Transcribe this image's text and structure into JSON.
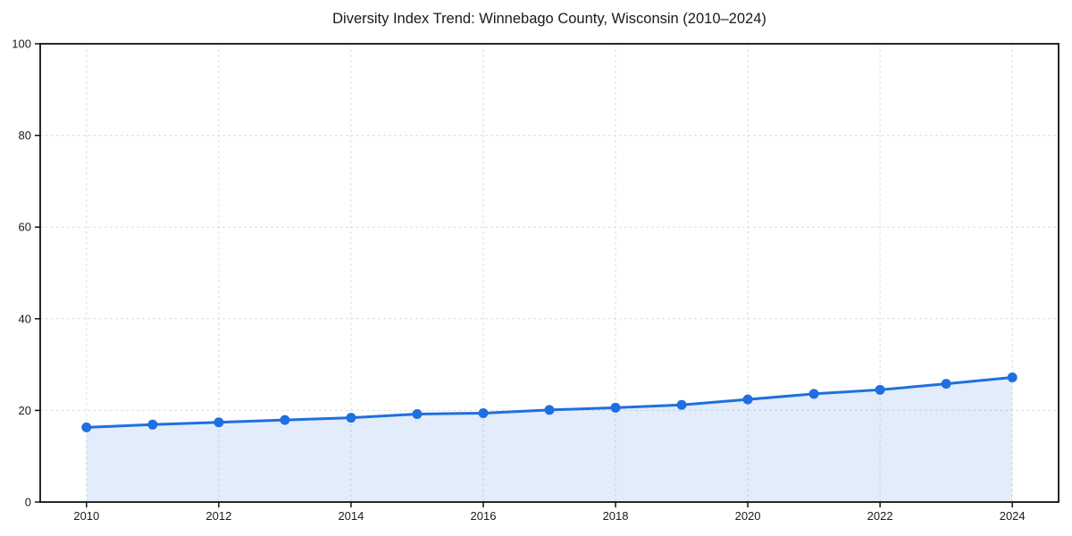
{
  "title": "Diversity Index Trend: Winnebago County, Wisconsin (2010–2024)",
  "chart_data": {
    "type": "line",
    "title": "Diversity Index Trend: Winnebago County, Wisconsin (2010–2024)",
    "series_name": "Diversity Index",
    "x": [
      2010,
      2011,
      2012,
      2013,
      2014,
      2015,
      2016,
      2017,
      2018,
      2019,
      2020,
      2021,
      2022,
      2023,
      2024
    ],
    "values": [
      16.3,
      16.9,
      17.4,
      17.9,
      18.4,
      19.2,
      19.4,
      20.1,
      20.6,
      21.2,
      22.4,
      23.6,
      24.5,
      25.8,
      27.2
    ],
    "xlabel": "",
    "ylabel": "",
    "xticks": [
      2010,
      2012,
      2014,
      2016,
      2018,
      2020,
      2022,
      2024
    ],
    "yticks": [
      0,
      20,
      40,
      60,
      80,
      100
    ],
    "xlim": [
      2009.3,
      2024.7
    ],
    "ylim": [
      0,
      100
    ],
    "grid": true,
    "grid_style": "dashed",
    "legend": "none",
    "area_fill": true,
    "marker": "circle",
    "colors": {
      "line": "#1f6fe0",
      "marker": "#1f6fe0",
      "fill": "#1f6fe0",
      "fill_opacity": 0.13,
      "grid": "#dedede",
      "axis_frame": "#111111",
      "text": "#1a1a1a",
      "background": "#ffffff"
    }
  }
}
